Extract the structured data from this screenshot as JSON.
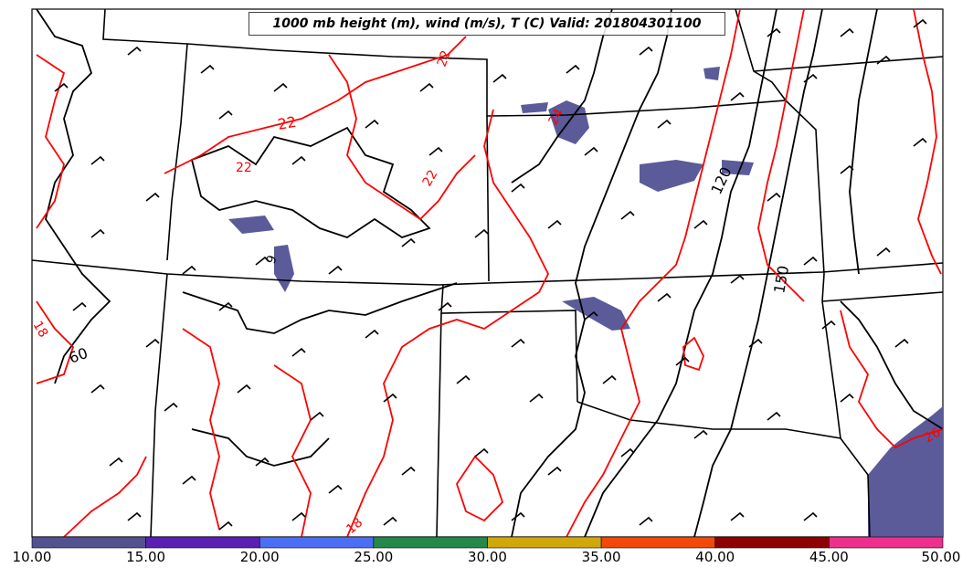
{
  "title": "1000 mb height (m), wind (m/s), T (C) Valid: 201804301100",
  "colorbar": {
    "ticks": [
      "10.00",
      "15.00",
      "20.00",
      "25.00",
      "30.00",
      "35.00",
      "40.00",
      "45.00",
      "50.00"
    ],
    "colors": [
      "#525291",
      "#5a1fb3",
      "#4b6ef5",
      "#24884a",
      "#d0a80a",
      "#f2480a",
      "#8f0000",
      "#ee2f8e"
    ]
  },
  "contour_labels": {
    "height": [
      "120",
      "150",
      "60",
      "9"
    ],
    "temperature": [
      "22",
      "22",
      "22",
      "18",
      "18",
      "22",
      "24",
      "26"
    ]
  },
  "colors": {
    "height_contour": "#000000",
    "temperature_contour": "#ff0000",
    "shading_10_15": "#5b5b9a"
  }
}
